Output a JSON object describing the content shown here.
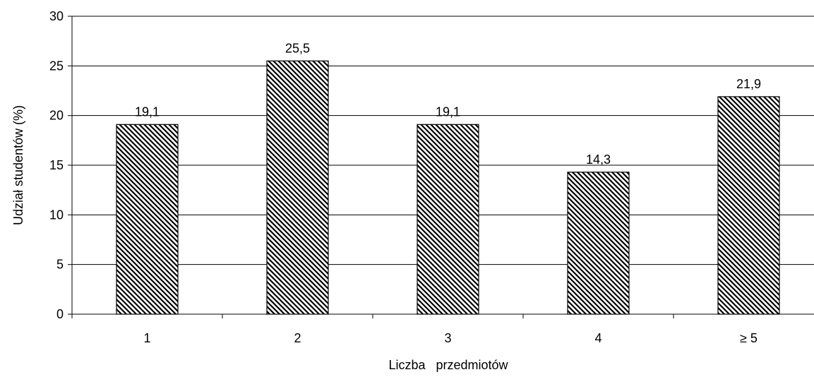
{
  "chart_data": {
    "type": "bar",
    "title": "",
    "xlabel": "Liczba   przedmiotów",
    "ylabel": "Udział studentów (%)",
    "categories": [
      "1",
      "2",
      "3",
      "4",
      "≥ 5"
    ],
    "values": [
      19.1,
      25.5,
      19.1,
      14.3,
      21.9
    ],
    "value_labels": [
      "19,1",
      "25,5",
      "19,1",
      "14,3",
      "21,9"
    ],
    "ylim": [
      0,
      30
    ],
    "yticks": [
      0,
      5,
      10,
      15,
      20,
      25,
      30
    ],
    "grid": "horizontal",
    "legend": "none",
    "bar_fill": "diagonal-hatch",
    "colors": {
      "bar_stroke": "#000000",
      "hatch": "#000000",
      "grid": "#000000",
      "background": "#ffffff"
    }
  }
}
